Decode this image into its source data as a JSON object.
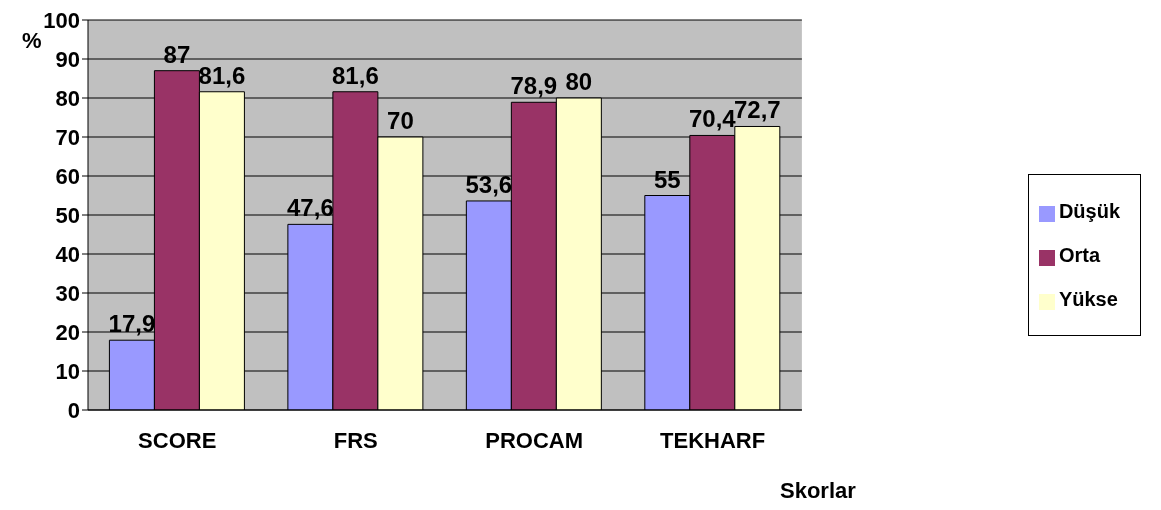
{
  "chart_data": {
    "type": "bar",
    "xlabel": "Skorlar",
    "ylabel": "%",
    "categories": [
      "SCORE",
      "FRS",
      "PROCAM",
      "TEKHARF"
    ],
    "series": [
      {
        "name": "Düşük",
        "color": "#9999ff",
        "values": [
          17.9,
          47.6,
          53.6,
          55
        ],
        "value_labels": [
          "17,9",
          "47,6",
          "53,6",
          "55"
        ]
      },
      {
        "name": "Orta",
        "color": "#993366",
        "values": [
          87,
          81.6,
          78.9,
          70.4
        ],
        "value_labels": [
          "87",
          "81,6",
          "78,9",
          "70,4"
        ]
      },
      {
        "name": "Yükse",
        "color": "#ffffcc",
        "values": [
          81.6,
          70,
          80,
          72.7
        ],
        "value_labels": [
          "81,6",
          "70",
          "80",
          "72,7"
        ]
      }
    ],
    "ylim": [
      0,
      100
    ],
    "yticks": [
      0,
      10,
      20,
      30,
      40,
      50,
      60,
      70,
      80,
      90,
      100
    ],
    "grid": "y",
    "legend": "right"
  }
}
